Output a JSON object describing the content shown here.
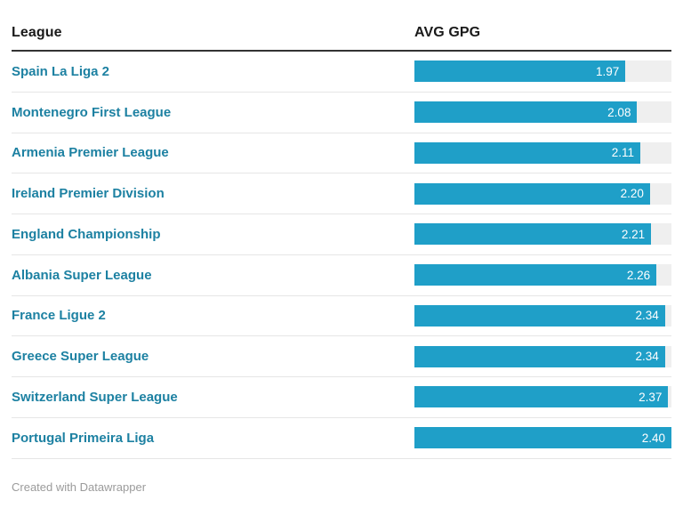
{
  "header": {
    "league_col": "League",
    "value_col": "AVG GPG"
  },
  "footer": {
    "credit": "Created with Datawrapper"
  },
  "colors": {
    "bar_fill": "#1f9fc8",
    "bar_track": "#efefef",
    "league_text": "#1d81a2",
    "header_text": "#1a1a1a",
    "header_border": "#333333",
    "row_separator": "#e6e6e6",
    "value_text": "#ffffff",
    "footer_text": "#9b9b9b"
  },
  "chart_data": {
    "type": "bar",
    "title": "",
    "categories": [
      "Spain La Liga 2",
      "Montenegro First League",
      "Armenia Premier League",
      "Ireland Premier Division",
      "England Championship",
      "Albania Super League",
      "France Ligue 2",
      "Greece Super League",
      "Switzerland Super League",
      "Portugal Primeira Liga"
    ],
    "values": [
      1.97,
      2.08,
      2.11,
      2.2,
      2.21,
      2.26,
      2.34,
      2.34,
      2.37,
      2.4
    ],
    "xlabel": "AVG GPG",
    "ylabel": "League",
    "xlim": [
      0,
      2.4
    ],
    "grid": false,
    "legend": false,
    "orientation": "horizontal",
    "value_labels_inside_bars": true
  },
  "rows": [
    {
      "league": "Spain La Liga 2",
      "value": "1.97"
    },
    {
      "league": "Montenegro First League",
      "value": "2.08"
    },
    {
      "league": "Armenia Premier League",
      "value": "2.11"
    },
    {
      "league": "Ireland Premier Division",
      "value": "2.20"
    },
    {
      "league": "England Championship",
      "value": "2.21"
    },
    {
      "league": "Albania Super League",
      "value": "2.26"
    },
    {
      "league": "France Ligue 2",
      "value": "2.34"
    },
    {
      "league": "Greece Super League",
      "value": "2.34"
    },
    {
      "league": "Switzerland Super League",
      "value": "2.37"
    },
    {
      "league": "Portugal Primeira Liga",
      "value": "2.40"
    }
  ]
}
